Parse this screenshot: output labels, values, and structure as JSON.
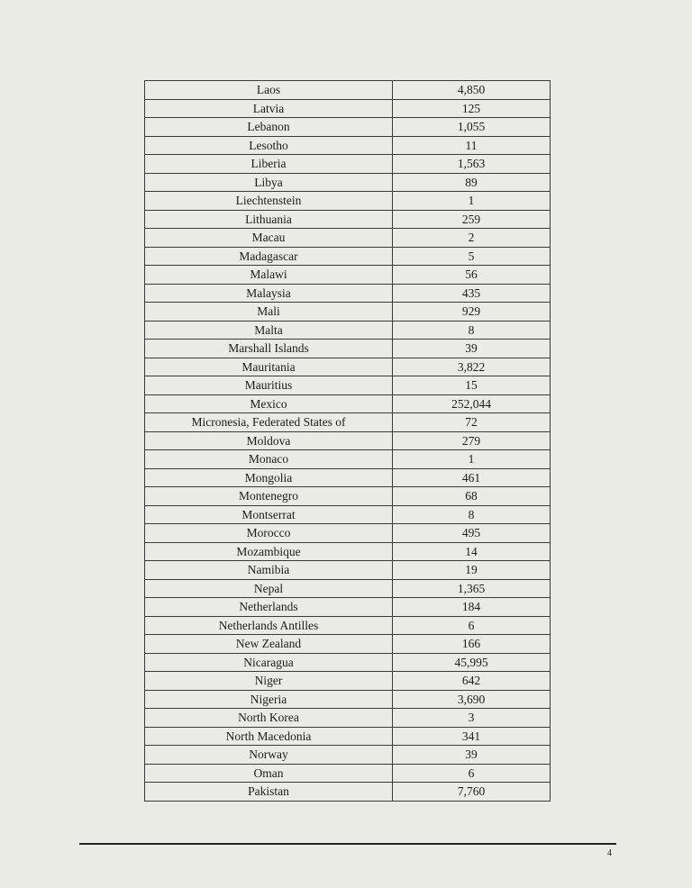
{
  "table": {
    "rows": [
      [
        "Laos",
        "4,850"
      ],
      [
        "Latvia",
        "125"
      ],
      [
        "Lebanon",
        "1,055"
      ],
      [
        "Lesotho",
        "11"
      ],
      [
        "Liberia",
        "1,563"
      ],
      [
        "Libya",
        "89"
      ],
      [
        "Liechtenstein",
        "1"
      ],
      [
        "Lithuania",
        "259"
      ],
      [
        "Macau",
        "2"
      ],
      [
        "Madagascar",
        "5"
      ],
      [
        "Malawi",
        "56"
      ],
      [
        "Malaysia",
        "435"
      ],
      [
        "Mali",
        "929"
      ],
      [
        "Malta",
        "8"
      ],
      [
        "Marshall Islands",
        "39"
      ],
      [
        "Mauritania",
        "3,822"
      ],
      [
        "Mauritius",
        "15"
      ],
      [
        "Mexico",
        "252,044"
      ],
      [
        "Micronesia, Federated States of",
        "72"
      ],
      [
        "Moldova",
        "279"
      ],
      [
        "Monaco",
        "1"
      ],
      [
        "Mongolia",
        "461"
      ],
      [
        "Montenegro",
        "68"
      ],
      [
        "Montserrat",
        "8"
      ],
      [
        "Morocco",
        "495"
      ],
      [
        "Mozambique",
        "14"
      ],
      [
        "Namibia",
        "19"
      ],
      [
        "Nepal",
        "1,365"
      ],
      [
        "Netherlands",
        "184"
      ],
      [
        "Netherlands Antilles",
        "6"
      ],
      [
        "New Zealand",
        "166"
      ],
      [
        "Nicaragua",
        "45,995"
      ],
      [
        "Niger",
        "642"
      ],
      [
        "Nigeria",
        "3,690"
      ],
      [
        "North Korea",
        "3"
      ],
      [
        "North Macedonia",
        "341"
      ],
      [
        "Norway",
        "39"
      ],
      [
        "Oman",
        "6"
      ],
      [
        "Pakistan",
        "7,760"
      ]
    ]
  },
  "footer": {
    "page_number": "4"
  }
}
